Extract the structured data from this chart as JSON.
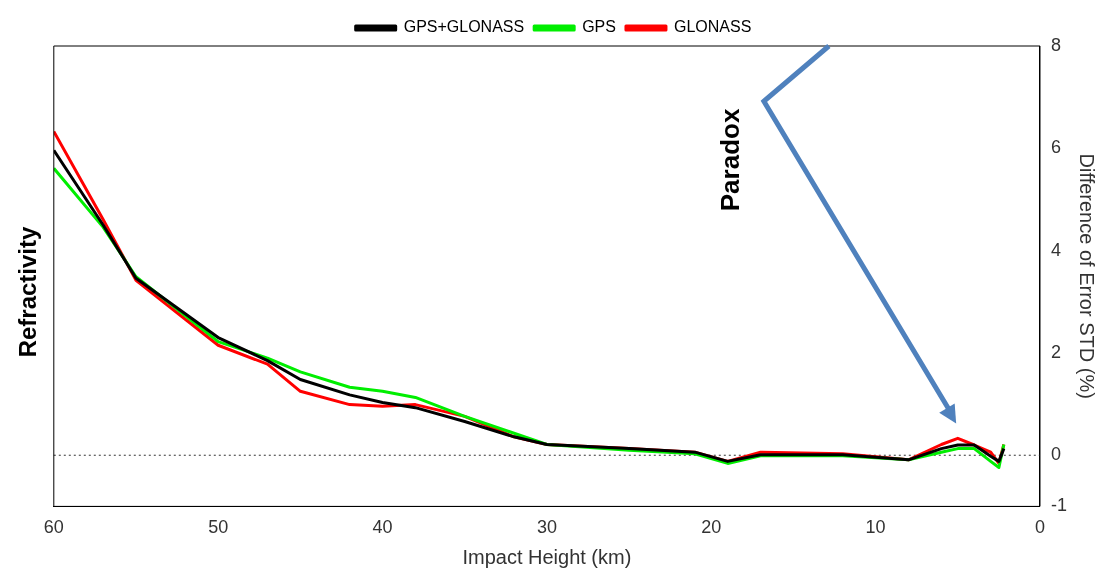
{
  "chart_data": {
    "type": "line",
    "title": "Refractivity",
    "xlabel": "Impact Height (km)",
    "ylabel": "Difference of Error STD (%)",
    "xlim": [
      60,
      0
    ],
    "xticks": [
      60,
      50,
      40,
      30,
      20,
      10,
      0
    ],
    "ylim": [
      -1,
      8
    ],
    "yticks": [
      -1,
      0,
      2,
      4,
      6,
      8
    ],
    "x": [
      60,
      57,
      55,
      50,
      47,
      45,
      42,
      40,
      38,
      35,
      32,
      30,
      25,
      21,
      19,
      17,
      12,
      8,
      6,
      5,
      4,
      3,
      2.5,
      2.2
    ],
    "series": [
      {
        "name": "GPS+GLONASS",
        "color": "#000000",
        "values": [
          5.96,
          4.5,
          3.46,
          2.3,
          1.85,
          1.48,
          1.18,
          1.03,
          0.93,
          0.66,
          0.36,
          0.21,
          0.13,
          0.06,
          -0.12,
          0.01,
          0.01,
          -0.09,
          0.13,
          0.2,
          0.2,
          -0.02,
          -0.12,
          0.13
        ]
      },
      {
        "name": "GPS",
        "color": "#00ee00",
        "values": [
          5.61,
          4.46,
          3.49,
          2.22,
          1.9,
          1.63,
          1.33,
          1.25,
          1.13,
          0.76,
          0.43,
          0.21,
          0.1,
          0.03,
          -0.16,
          -0.01,
          -0.01,
          -0.09,
          0.06,
          0.13,
          0.13,
          -0.12,
          -0.24,
          0.21
        ]
      },
      {
        "name": "GLONASS",
        "color": "#ff0000",
        "values": [
          6.33,
          4.61,
          3.42,
          2.15,
          1.78,
          1.25,
          0.99,
          0.96,
          0.99,
          0.76,
          0.36,
          0.21,
          0.13,
          0.06,
          -0.12,
          0.06,
          0.03,
          -0.09,
          0.21,
          0.33,
          0.2,
          0.06,
          -0.16,
          0.21
        ]
      }
    ],
    "ref_lines": [
      {
        "axis": "y",
        "value": 0,
        "line_style": "dotted",
        "color": "#333333"
      }
    ],
    "annotations": [
      "Paradox"
    ],
    "legend": "top",
    "grid": false,
    "marker": "none",
    "line_style": "solid"
  }
}
